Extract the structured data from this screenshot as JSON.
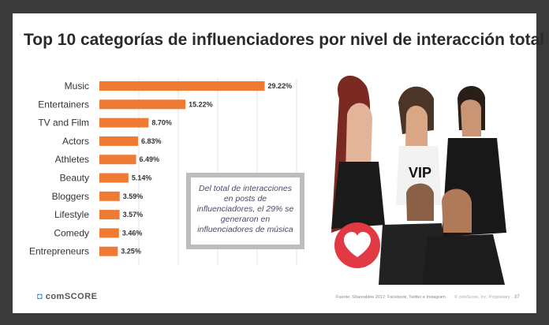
{
  "slide": {
    "title": "Top 10 categorías de influenciadores por nivel de interacción total",
    "callout_text": "Del total de interacciones en posts de influenciadores, el 29% se generaron en influenciadores de música",
    "footer": {
      "logo_mark": "◘",
      "logo_text": "comSCORE",
      "source": "Fuente: Shareablee 2017: Facebook, Twitter e Instagram",
      "credit": "© comScore, Inc. Proprietary",
      "page": "37"
    }
  },
  "colors": {
    "bar": "#ee7a33",
    "heart_badge": "#e23a44"
  },
  "chart_data": {
    "type": "bar",
    "orientation": "horizontal",
    "categories": [
      "Music",
      "Entertainers",
      "TV and Film",
      "Actors",
      "Athletes",
      "Beauty",
      "Bloggers",
      "Lifestyle",
      "Comedy",
      "Entrepreneurs"
    ],
    "values": [
      29.22,
      15.22,
      8.7,
      6.83,
      6.49,
      5.14,
      3.59,
      3.57,
      3.46,
      3.25
    ],
    "value_labels": [
      "29.22%",
      "15.22%",
      "8.70%",
      "6.83%",
      "6.49%",
      "5.14%",
      "3.59%",
      "3.57%",
      "3.46%",
      "3.25%"
    ],
    "xlim": [
      0,
      35
    ],
    "grid": true,
    "legend": "none"
  }
}
